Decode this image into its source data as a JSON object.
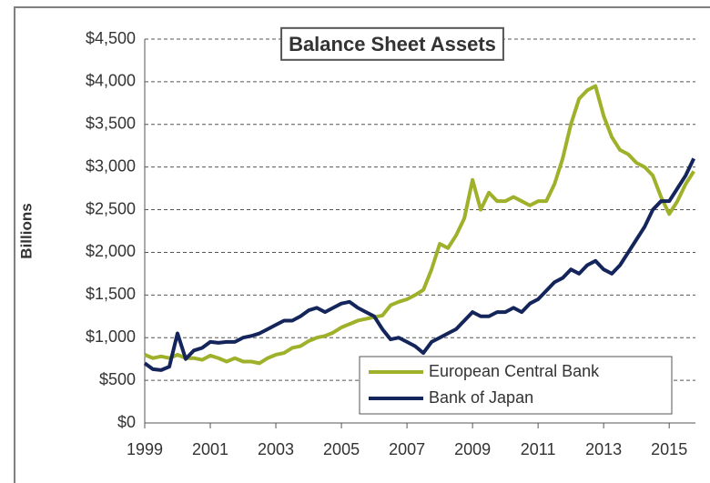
{
  "chart_data": {
    "type": "line",
    "title": "Balance Sheet Assets",
    "y_label": "Billions",
    "x": [
      1999.0,
      1999.25,
      1999.5,
      1999.75,
      2000.0,
      2000.25,
      2000.5,
      2000.75,
      2001.0,
      2001.25,
      2001.5,
      2001.75,
      2002.0,
      2002.25,
      2002.5,
      2002.75,
      2003.0,
      2003.25,
      2003.5,
      2003.75,
      2004.0,
      2004.25,
      2004.5,
      2004.75,
      2005.0,
      2005.25,
      2005.5,
      2005.75,
      2006.0,
      2006.25,
      2006.5,
      2006.75,
      2007.0,
      2007.25,
      2007.5,
      2007.75,
      2008.0,
      2008.25,
      2008.5,
      2008.75,
      2009.0,
      2009.25,
      2009.5,
      2009.75,
      2010.0,
      2010.25,
      2010.5,
      2010.75,
      2011.0,
      2011.25,
      2011.5,
      2011.75,
      2012.0,
      2012.25,
      2012.5,
      2012.75,
      2013.0,
      2013.25,
      2013.5,
      2013.75,
      2014.0,
      2014.25,
      2014.5,
      2014.75,
      2015.0,
      2015.25,
      2015.5,
      2015.75
    ],
    "series": [
      {
        "name": "European Central Bank",
        "color": "#9fb12a",
        "values": [
          800,
          760,
          780,
          760,
          800,
          760,
          760,
          740,
          790,
          760,
          720,
          760,
          720,
          720,
          700,
          760,
          800,
          820,
          880,
          900,
          960,
          1000,
          1020,
          1060,
          1120,
          1160,
          1200,
          1220,
          1240,
          1260,
          1380,
          1420,
          1450,
          1500,
          1560,
          1800,
          2100,
          2050,
          2200,
          2400,
          2850,
          2500,
          2700,
          2600,
          2600,
          2650,
          2600,
          2550,
          2600,
          2600,
          2800,
          3100,
          3500,
          3800,
          3900,
          3950,
          3600,
          3350,
          3200,
          3150,
          3050,
          3000,
          2900,
          2650,
          2450,
          2600,
          2800,
          2950
        ]
      },
      {
        "name": "Bank of Japan",
        "color": "#14255c",
        "values": [
          700,
          630,
          620,
          660,
          1050,
          750,
          850,
          880,
          950,
          940,
          950,
          950,
          1000,
          1020,
          1050,
          1100,
          1150,
          1200,
          1200,
          1250,
          1320,
          1350,
          1300,
          1350,
          1400,
          1420,
          1350,
          1300,
          1250,
          1100,
          980,
          1000,
          950,
          900,
          820,
          950,
          1000,
          1050,
          1100,
          1200,
          1300,
          1250,
          1250,
          1300,
          1300,
          1350,
          1300,
          1400,
          1450,
          1550,
          1650,
          1700,
          1800,
          1750,
          1850,
          1900,
          1800,
          1750,
          1850,
          2000,
          2150,
          2300,
          2500,
          2600,
          2600,
          2750,
          2900,
          3100
        ]
      }
    ],
    "xlim": [
      1999,
      2015.8
    ],
    "xticks": [
      1999,
      2001,
      2003,
      2005,
      2007,
      2009,
      2011,
      2013,
      2015
    ],
    "ylim": [
      0,
      4500
    ],
    "yticks": [
      {
        "value": 0,
        "label": "$0"
      },
      {
        "value": 500,
        "label": "$500"
      },
      {
        "value": 1000,
        "label": "$1,000"
      },
      {
        "value": 1500,
        "label": "$1,500"
      },
      {
        "value": 2000,
        "label": "$2,000"
      },
      {
        "value": 2500,
        "label": "$2,500"
      },
      {
        "value": 3000,
        "label": "$3,000"
      },
      {
        "value": 3500,
        "label": "$3,500"
      },
      {
        "value": 4000,
        "label": "$4,000"
      },
      {
        "value": 4500,
        "label": "$4,500"
      }
    ],
    "grid": true,
    "legend": "lower right"
  }
}
